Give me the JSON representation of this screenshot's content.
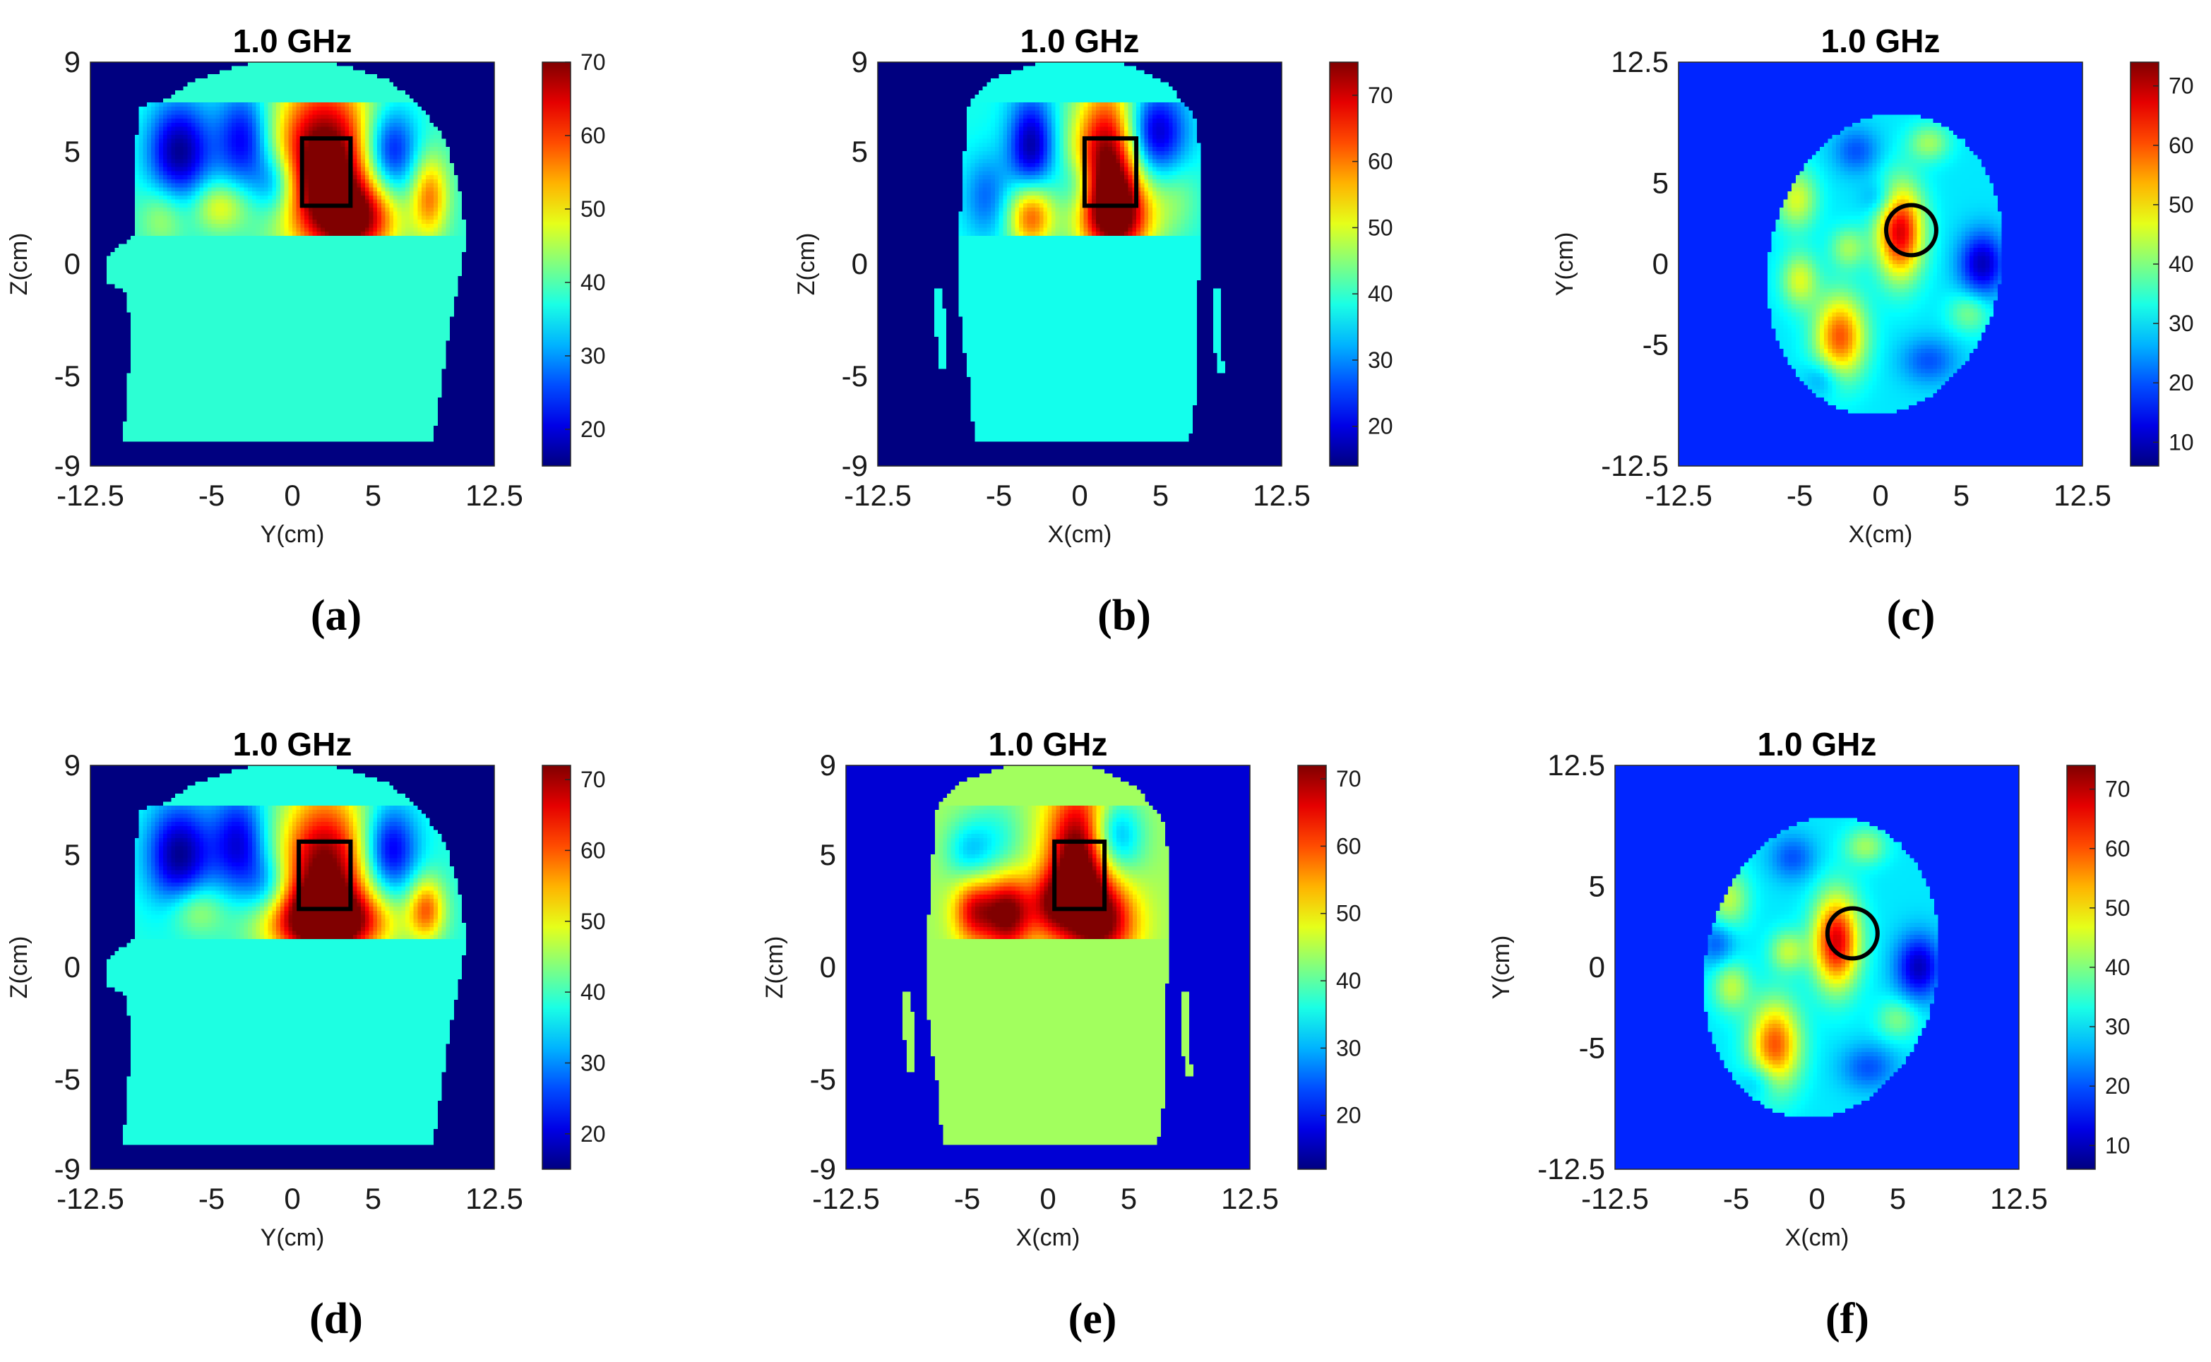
{
  "figure": {
    "captions": [
      "(a)",
      "(b)",
      "(c)",
      "(d)",
      "(e)",
      "(f)"
    ]
  },
  "chart_data": [
    {
      "type": "heatmap",
      "panel": "a",
      "title": "1.0 GHz",
      "xlabel": "Y(cm)",
      "ylabel": "Z(cm)",
      "x_ticks": [
        "-12.5",
        "-5",
        "0",
        "5",
        "12.5"
      ],
      "y_ticks": [
        "9",
        "5",
        "0",
        "-5",
        "-9"
      ],
      "xlim": [
        -12.5,
        12.5
      ],
      "ylim": [
        -9,
        9
      ],
      "colorbar": {
        "ticks": [
          "20",
          "30",
          "40",
          "50",
          "60",
          "70"
        ],
        "range": [
          15,
          70
        ]
      },
      "background_value": 15,
      "body_value": 38,
      "head_outline": [
        [
          -9.5,
          7
        ],
        [
          -8,
          7.3
        ],
        [
          -6,
          8.2
        ],
        [
          -3,
          8.9
        ],
        [
          0,
          9
        ],
        [
          3,
          8.9
        ],
        [
          6,
          8.2
        ],
        [
          8,
          7
        ],
        [
          9.5,
          5.5
        ],
        [
          10.3,
          3.5
        ],
        [
          10.8,
          1.3
        ],
        [
          10.5,
          0
        ],
        [
          9.7,
          -3
        ],
        [
          9.1,
          -6
        ],
        [
          8.7,
          -8
        ],
        [
          -10.5,
          -8
        ],
        [
          -10.2,
          -5.5
        ],
        [
          -9.9,
          -3
        ],
        [
          -10.4,
          -1.2
        ],
        [
          -11.5,
          -0.8
        ],
        [
          -11.6,
          0.3
        ],
        [
          -10.5,
          0.9
        ],
        [
          -9.8,
          1.3
        ],
        [
          -9.8,
          4
        ],
        [
          -9.5,
          7
        ]
      ],
      "slab_z": [
        1.2,
        7.2
      ],
      "hotspots": [
        [
          2,
          4.5,
          2.2,
          2.6,
          38
        ],
        [
          4,
          2,
          1.8,
          1.2,
          24
        ],
        [
          -7,
          5,
          1.4,
          1.6,
          -22
        ],
        [
          -3,
          5.5,
          1.2,
          1.6,
          -18
        ],
        [
          -1,
          3.6,
          1,
          1,
          -14
        ],
        [
          6,
          5,
          1.2,
          1.4,
          -20
        ],
        [
          8.5,
          3,
          0.8,
          1.3,
          18
        ],
        [
          -4.5,
          2.6,
          1.2,
          0.8,
          12
        ],
        [
          -8,
          2.2,
          1,
          1,
          8
        ]
      ],
      "marker": {
        "shape": "rect",
        "x0": 0.6,
        "x1": 3.6,
        "y0": 2.6,
        "y1": 5.6
      }
    },
    {
      "type": "heatmap",
      "panel": "b",
      "title": "1.0 GHz",
      "xlabel": "X(cm)",
      "ylabel": "Z(cm)",
      "x_ticks": [
        "-12.5",
        "-5",
        "0",
        "5",
        "12.5"
      ],
      "y_ticks": [
        "9",
        "5",
        "0",
        "-5",
        "-9"
      ],
      "xlim": [
        -12.5,
        12.5
      ],
      "ylim": [
        -9,
        9
      ],
      "colorbar": {
        "ticks": [
          "20",
          "30",
          "40",
          "50",
          "60",
          "70"
        ],
        "range": [
          14,
          75
        ]
      },
      "background_value": 14,
      "body_value": 38,
      "head_outline": [
        [
          -7,
          7
        ],
        [
          -5.5,
          8.2
        ],
        [
          -3,
          8.9
        ],
        [
          0,
          9
        ],
        [
          3,
          8.9
        ],
        [
          5.5,
          8
        ],
        [
          7.2,
          6.5
        ],
        [
          7.6,
          4
        ],
        [
          7.5,
          1.3
        ],
        [
          7.4,
          0
        ],
        [
          7.3,
          -3
        ],
        [
          7.2,
          -6
        ],
        [
          6.8,
          -8
        ],
        [
          -6.5,
          -8
        ],
        [
          -6.8,
          -5.5
        ],
        [
          -7.3,
          -3
        ],
        [
          -7.5,
          -1
        ],
        [
          -7.5,
          1.3
        ],
        [
          -7.2,
          4
        ],
        [
          -7,
          7
        ]
      ],
      "side_features": [
        [
          [
            -8.9,
            -1
          ],
          [
            -8.4,
            -1
          ],
          [
            -8.3,
            -4.6
          ],
          [
            -8.7,
            -4.7
          ],
          [
            -8.9,
            -3
          ]
        ],
        [
          [
            8.3,
            -1
          ],
          [
            8.7,
            -1
          ],
          [
            8.9,
            -4.8
          ],
          [
            8.4,
            -4.9
          ]
        ]
      ],
      "slab_z": [
        1.2,
        7.2
      ],
      "hotspots": [
        [
          1.8,
          4.6,
          1.5,
          2.4,
          40
        ],
        [
          2.4,
          2,
          1.6,
          1.3,
          26
        ],
        [
          -3,
          2.2,
          1,
          1.1,
          26
        ],
        [
          -3,
          5.2,
          1,
          1.6,
          -22
        ],
        [
          4.5,
          5.8,
          1.4,
          1.4,
          -24
        ],
        [
          -5.8,
          3,
          1,
          1.3,
          -10
        ],
        [
          0,
          3.5,
          0.9,
          0.9,
          -10
        ],
        [
          6,
          3,
          1,
          1.2,
          6
        ]
      ],
      "marker": {
        "shape": "rect",
        "x0": 0.3,
        "x1": 3.5,
        "y0": 2.6,
        "y1": 5.6
      }
    },
    {
      "type": "heatmap",
      "panel": "c",
      "title": "1.0 GHz",
      "xlabel": "X(cm)",
      "ylabel": "Y(cm)",
      "x_ticks": [
        "-12.5",
        "-5",
        "0",
        "5",
        "12.5"
      ],
      "y_ticks": [
        "12.5",
        "5",
        "0",
        "-5",
        "-12.5"
      ],
      "xlim": [
        -12.5,
        12.5
      ],
      "ylim": [
        -12.5,
        12.5
      ],
      "colorbar": {
        "ticks": [
          "10",
          "20",
          "30",
          "40",
          "50",
          "60",
          "70"
        ],
        "range": [
          6,
          74
        ]
      },
      "background_value": 17,
      "base_value": 30,
      "ellipse": {
        "cx": 0.3,
        "cy": 0,
        "rx": 7.2,
        "ry": 9.4,
        "rot_deg": -12
      },
      "hotspots": [
        [
          1.2,
          2,
          1,
          2,
          38
        ],
        [
          -2.5,
          -4.5,
          1.1,
          1.8,
          30
        ],
        [
          -5,
          -1,
          0.8,
          1.2,
          16
        ],
        [
          -5.2,
          4,
          0.9,
          1.3,
          16
        ],
        [
          3,
          7.5,
          0.9,
          0.8,
          12
        ],
        [
          5.5,
          -3,
          0.9,
          0.9,
          10
        ],
        [
          -2,
          1,
          0.8,
          0.9,
          12
        ],
        [
          6.3,
          0,
          1,
          1.4,
          -20
        ],
        [
          -1.5,
          7,
          1,
          1,
          -10
        ],
        [
          3,
          -6,
          1.2,
          1,
          -10
        ],
        [
          -3.5,
          -7,
          0.8,
          0.8,
          -8
        ],
        [
          0,
          4,
          0.8,
          0.8,
          -8
        ]
      ],
      "marker": {
        "shape": "circle",
        "cx": 1.9,
        "cy": 2.1,
        "r": 1.55
      }
    },
    {
      "type": "heatmap",
      "panel": "d",
      "title": "1.0 GHz",
      "xlabel": "Y(cm)",
      "ylabel": "Z(cm)",
      "x_ticks": [
        "-12.5",
        "-5",
        "0",
        "5",
        "12.5"
      ],
      "y_ticks": [
        "9",
        "5",
        "0",
        "-5",
        "-9"
      ],
      "xlim": [
        -12.5,
        12.5
      ],
      "ylim": [
        -9,
        9
      ],
      "colorbar": {
        "ticks": [
          "20",
          "30",
          "40",
          "50",
          "60",
          "70"
        ],
        "range": [
          15,
          72
        ]
      },
      "background_value": 15,
      "body_value": 38,
      "head_outline": [
        [
          -9.5,
          7
        ],
        [
          -8,
          7.3
        ],
        [
          -6,
          8.2
        ],
        [
          -3,
          8.9
        ],
        [
          0,
          9
        ],
        [
          3,
          8.9
        ],
        [
          6,
          8.2
        ],
        [
          8,
          7
        ],
        [
          9.5,
          5.5
        ],
        [
          10.3,
          3.5
        ],
        [
          10.8,
          1.3
        ],
        [
          10.5,
          0
        ],
        [
          9.7,
          -3
        ],
        [
          9.1,
          -6
        ],
        [
          8.7,
          -8
        ],
        [
          -10.5,
          -8
        ],
        [
          -10.2,
          -5.5
        ],
        [
          -9.9,
          -3
        ],
        [
          -10.4,
          -1.2
        ],
        [
          -11.5,
          -0.8
        ],
        [
          -11.6,
          0.3
        ],
        [
          -10.5,
          0.9
        ],
        [
          -9.8,
          1.3
        ],
        [
          -9.8,
          4
        ],
        [
          -9.5,
          7
        ]
      ],
      "slab_z": [
        1.2,
        7.2
      ],
      "hotspots": [
        [
          2,
          4.2,
          2,
          2.6,
          36
        ],
        [
          2.2,
          2,
          2.8,
          1,
          28
        ],
        [
          -7,
          5,
          1.4,
          1.6,
          -22
        ],
        [
          -3.3,
          5.5,
          1.2,
          1.6,
          -18
        ],
        [
          6,
          5.2,
          1.2,
          1.4,
          -20
        ],
        [
          8.3,
          2.6,
          0.8,
          1,
          20
        ],
        [
          -6,
          2.6,
          1.2,
          0.8,
          10
        ],
        [
          -1.5,
          3.6,
          1,
          1,
          -10
        ]
      ],
      "marker": {
        "shape": "rect",
        "x0": 0.4,
        "x1": 3.6,
        "y0": 2.6,
        "y1": 5.6
      }
    },
    {
      "type": "heatmap",
      "panel": "e",
      "title": "1.0 GHz",
      "xlabel": "X(cm)",
      "ylabel": "Z(cm)",
      "x_ticks": [
        "-12.5",
        "-5",
        "0",
        "5",
        "12.5"
      ],
      "y_ticks": [
        "9",
        "5",
        "0",
        "-5",
        "-9"
      ],
      "xlim": [
        -12.5,
        12.5
      ],
      "ylim": [
        -9,
        9
      ],
      "colorbar": {
        "ticks": [
          "20",
          "30",
          "40",
          "50",
          "60",
          "70"
        ],
        "range": [
          12,
          72
        ]
      },
      "background_value": 17,
      "body_value": 44,
      "head_outline": [
        [
          -7,
          7
        ],
        [
          -5.5,
          8.2
        ],
        [
          -3,
          8.9
        ],
        [
          0,
          9
        ],
        [
          3,
          8.9
        ],
        [
          5.5,
          8
        ],
        [
          7.2,
          6.5
        ],
        [
          7.6,
          4
        ],
        [
          7.5,
          1.3
        ],
        [
          7.4,
          0
        ],
        [
          7.3,
          -3
        ],
        [
          7.2,
          -6
        ],
        [
          6.8,
          -8
        ],
        [
          -6.5,
          -8
        ],
        [
          -6.8,
          -5.5
        ],
        [
          -7.3,
          -3
        ],
        [
          -7.5,
          -1
        ],
        [
          -7.5,
          1.3
        ],
        [
          -7.2,
          4
        ],
        [
          -7,
          7
        ]
      ],
      "side_features": [
        [
          [
            -8.9,
            -1
          ],
          [
            -8.4,
            -1
          ],
          [
            -8.3,
            -4.6
          ],
          [
            -8.7,
            -4.7
          ],
          [
            -8.9,
            -3
          ]
        ],
        [
          [
            8.3,
            -1
          ],
          [
            8.7,
            -1
          ],
          [
            8.9,
            -4.8
          ],
          [
            8.4,
            -4.9
          ]
        ]
      ],
      "slab_z": [
        1.2,
        7.2
      ],
      "hotspots": [
        [
          2,
          4.6,
          1.4,
          2.4,
          36
        ],
        [
          3.6,
          2,
          1.4,
          1.2,
          22
        ],
        [
          -2.5,
          2.4,
          1.1,
          1.2,
          30
        ],
        [
          -4.6,
          2.5,
          0.9,
          1,
          20
        ],
        [
          0.3,
          2.8,
          1,
          1,
          18
        ],
        [
          -3.2,
          5.5,
          1.2,
          1.4,
          -8
        ],
        [
          4,
          5.8,
          1.2,
          1.2,
          -20
        ],
        [
          -5,
          5.2,
          1,
          1,
          -10
        ]
      ],
      "marker": {
        "shape": "rect",
        "x0": 0.4,
        "x1": 3.5,
        "y0": 2.6,
        "y1": 5.6
      }
    },
    {
      "type": "heatmap",
      "panel": "f",
      "title": "1.0 GHz",
      "xlabel": "X(cm)",
      "ylabel": "Y(cm)",
      "x_ticks": [
        "-12.5",
        "-5",
        "0",
        "5",
        "12.5"
      ],
      "y_ticks": [
        "12.5",
        "5",
        "0",
        "-5",
        "-12.5"
      ],
      "xlim": [
        -12.5,
        12.5
      ],
      "ylim": [
        -12.5,
        12.5
      ],
      "colorbar": {
        "ticks": [
          "10",
          "20",
          "30",
          "40",
          "50",
          "60",
          "70"
        ],
        "range": [
          6,
          74
        ]
      },
      "background_value": 17,
      "base_value": 30,
      "ellipse": {
        "cx": 0.3,
        "cy": 0,
        "rx": 7.2,
        "ry": 9.4,
        "rot_deg": -12
      },
      "hotspots": [
        [
          1.2,
          1.6,
          1,
          2,
          38
        ],
        [
          -2.6,
          -4.8,
          1.1,
          1.9,
          30
        ],
        [
          -5.3,
          -1.2,
          0.8,
          1.1,
          14
        ],
        [
          -5.5,
          4.2,
          0.9,
          1.3,
          14
        ],
        [
          3,
          7.5,
          0.9,
          0.8,
          12
        ],
        [
          5,
          -3.2,
          0.9,
          0.9,
          10
        ],
        [
          -1.8,
          1,
          0.8,
          0.9,
          14
        ],
        [
          6.3,
          0,
          1,
          1.4,
          -20
        ],
        [
          -1.5,
          6.8,
          1,
          1,
          -10
        ],
        [
          3.2,
          -6.2,
          1.2,
          1,
          -10
        ],
        [
          -3.5,
          -7,
          0.8,
          0.8,
          -8
        ],
        [
          -6.2,
          1.5,
          0.8,
          1,
          -10
        ]
      ],
      "marker": {
        "shape": "circle",
        "cx": 2.2,
        "cy": 2.1,
        "r": 1.55
      }
    }
  ]
}
